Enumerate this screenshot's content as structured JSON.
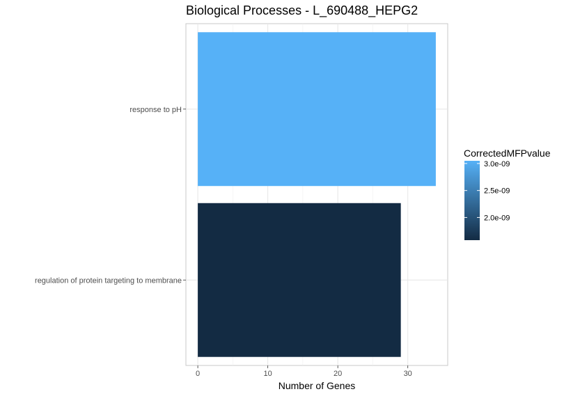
{
  "chart_data": {
    "type": "bar",
    "orientation": "horizontal",
    "title": "Biological Processes - L_690488_HEPG2",
    "xlabel": "Number of Genes",
    "ylabel": "",
    "xlim": [
      -1.7,
      35.7
    ],
    "x_ticks": [
      0,
      10,
      20,
      30
    ],
    "x_tick_labels": [
      "0",
      "10",
      "20",
      "30"
    ],
    "categories": [
      "response to pH",
      "regulation of protein targeting to membrane"
    ],
    "values": [
      34,
      29
    ],
    "color_values": [
      3.05e-09,
      1.58e-09
    ],
    "bar_colors": [
      "#56B1F7",
      "#132B43"
    ],
    "grid": true,
    "legend": {
      "title": "CorrectedMFPvalue",
      "placement": "right",
      "min": 1.58e-09,
      "max": 3.05e-09,
      "low_color": "#132B43",
      "high_color": "#56B1F7",
      "ticks": [
        3e-09,
        2.5e-09,
        2e-09
      ],
      "tick_labels": [
        "3.0e-09",
        "2.5e-09",
        "2.0e-09"
      ]
    }
  }
}
